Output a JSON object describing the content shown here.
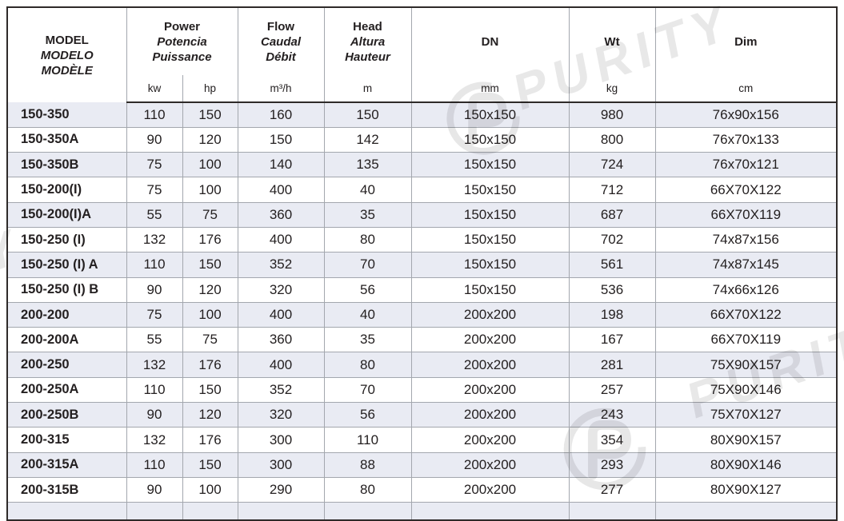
{
  "table": {
    "columns_order": [
      "model",
      "kw",
      "hp",
      "flow",
      "head",
      "dn",
      "wt",
      "dim"
    ],
    "headers": {
      "model": {
        "en": "MODEL",
        "es": "MODELO",
        "fr": "MODÈLE"
      },
      "power": {
        "en": "Power",
        "es": "Potencia",
        "fr": "Puissance",
        "unit_kw": "kw",
        "unit_hp": "hp"
      },
      "flow": {
        "en": "Flow",
        "es": "Caudal",
        "fr": "Débit",
        "unit": "m³/h"
      },
      "head": {
        "en": "Head",
        "es": "Altura",
        "fr": "Hauteur",
        "unit": "m"
      },
      "dn": {
        "label": "DN",
        "unit": "mm"
      },
      "wt": {
        "label": "Wt",
        "unit": "kg"
      },
      "dim": {
        "label": "Dim",
        "unit": "cm"
      }
    },
    "rows": [
      {
        "model": "150-350",
        "kw": "110",
        "hp": "150",
        "flow": "160",
        "head": "150",
        "dn": "150x150",
        "wt": "980",
        "dim": "76x90x156"
      },
      {
        "model": "150-350A",
        "kw": "90",
        "hp": "120",
        "flow": "150",
        "head": "142",
        "dn": "150x150",
        "wt": "800",
        "dim": "76x70x133"
      },
      {
        "model": "150-350B",
        "kw": "75",
        "hp": "100",
        "flow": "140",
        "head": "135",
        "dn": "150x150",
        "wt": "724",
        "dim": "76x70x121"
      },
      {
        "model": "150-200(I)",
        "kw": "75",
        "hp": "100",
        "flow": "400",
        "head": "40",
        "dn": "150x150",
        "wt": "712",
        "dim": "66X70X122"
      },
      {
        "model": "150-200(I)A",
        "kw": "55",
        "hp": "75",
        "flow": "360",
        "head": "35",
        "dn": "150x150",
        "wt": "687",
        "dim": "66X70X119"
      },
      {
        "model": "150-250 (I)",
        "kw": "132",
        "hp": "176",
        "flow": "400",
        "head": "80",
        "dn": "150x150",
        "wt": "702",
        "dim": "74x87x156"
      },
      {
        "model": "150-250 (I) A",
        "kw": "110",
        "hp": "150",
        "flow": "352",
        "head": "70",
        "dn": "150x150",
        "wt": "561",
        "dim": "74x87x145"
      },
      {
        "model": "150-250 (I) B",
        "kw": "90",
        "hp": "120",
        "flow": "320",
        "head": "56",
        "dn": "150x150",
        "wt": "536",
        "dim": "74x66x126"
      },
      {
        "model": "200-200",
        "kw": "75",
        "hp": "100",
        "flow": "400",
        "head": "40",
        "dn": "200x200",
        "wt": "198",
        "dim": "66X70X122"
      },
      {
        "model": "200-200A",
        "kw": "55",
        "hp": "75",
        "flow": "360",
        "head": "35",
        "dn": "200x200",
        "wt": "167",
        "dim": "66X70X119"
      },
      {
        "model": "200-250",
        "kw": "132",
        "hp": "176",
        "flow": "400",
        "head": "80",
        "dn": "200x200",
        "wt": "281",
        "dim": "75X90X157"
      },
      {
        "model": "200-250A",
        "kw": "110",
        "hp": "150",
        "flow": "352",
        "head": "70",
        "dn": "200x200",
        "wt": "257",
        "dim": "75X90X146"
      },
      {
        "model": "200-250B",
        "kw": "90",
        "hp": "120",
        "flow": "320",
        "head": "56",
        "dn": "200x200",
        "wt": "243",
        "dim": "75X70X127"
      },
      {
        "model": "200-315",
        "kw": "132",
        "hp": "176",
        "flow": "300",
        "head": "110",
        "dn": "200x200",
        "wt": "354",
        "dim": "80X90X157"
      },
      {
        "model": "200-315A",
        "kw": "110",
        "hp": "150",
        "flow": "300",
        "head": "88",
        "dn": "200x200",
        "wt": "293",
        "dim": "80X90X146"
      },
      {
        "model": "200-315B",
        "kw": "90",
        "hp": "100",
        "flow": "290",
        "head": "80",
        "dn": "200x200",
        "wt": "277",
        "dim": "80X90X127"
      }
    ]
  },
  "watermark": {
    "text_top": "PURITY",
    "text_bottom_right": "PURITY",
    "text_left": "PURITY"
  },
  "colors": {
    "stripe": "#e9ebf3",
    "border_thin": "#a3a7ae",
    "border_thick": "#2e2a29",
    "text": "#242021",
    "watermark": "#e8e8e8"
  }
}
